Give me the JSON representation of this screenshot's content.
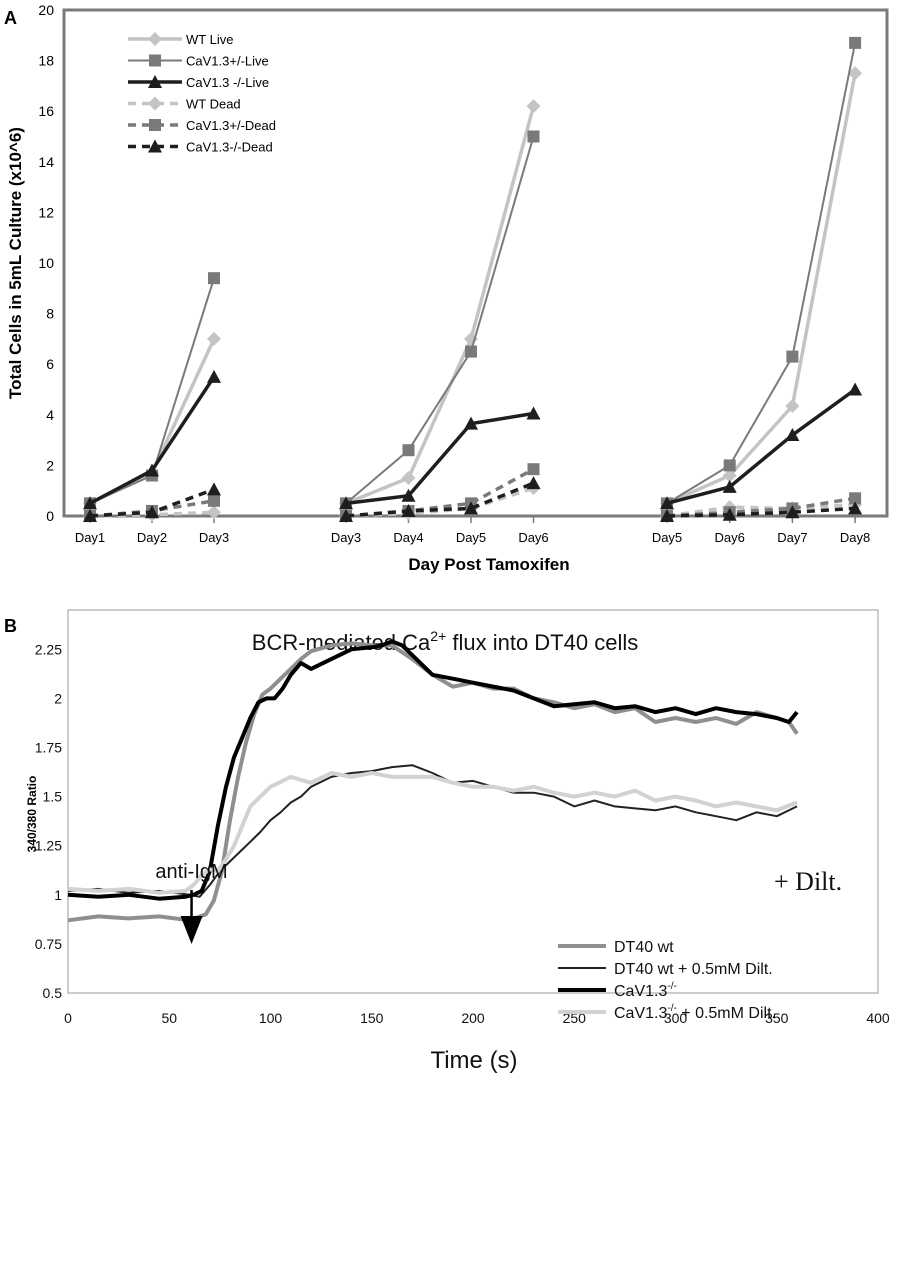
{
  "chart_data": [
    {
      "panel_label": "A",
      "type": "line",
      "ylabel": "Total Cells in 5mL Culture (x10^6)",
      "xlabel": "Day Post Tamoxifen",
      "ylim": [
        0,
        20
      ],
      "yticks": [
        "0",
        "2",
        "4",
        "6",
        "8",
        "10",
        "12",
        "14",
        "16",
        "18",
        "20"
      ],
      "grid": false,
      "legend_position": "top-left",
      "groups": [
        {
          "categories": [
            "Day1",
            "Day2",
            "Day3"
          ],
          "series": [
            {
              "name": "WT Live",
              "values": [
                0.5,
                1.7,
                7.0
              ]
            },
            {
              "name": "CaV1.3+/-Live",
              "values": [
                0.5,
                1.6,
                9.4
              ]
            },
            {
              "name": "CaV1.3 -/-Live",
              "values": [
                0.5,
                1.8,
                5.5
              ]
            },
            {
              "name": "WT Dead",
              "values": [
                0.0,
                0.05,
                0.15
              ]
            },
            {
              "name": "CaV1.3+/-Dead",
              "values": [
                0.0,
                0.2,
                0.6
              ]
            },
            {
              "name": "CaV1.3-/-Dead",
              "values": [
                0.0,
                0.15,
                1.05
              ]
            }
          ]
        },
        {
          "categories": [
            "Day3",
            "Day4",
            "Day5",
            "Day6"
          ],
          "series": [
            {
              "name": "WT Live",
              "values": [
                0.5,
                1.5,
                7.0,
                16.2
              ]
            },
            {
              "name": "CaV1.3+/-Live",
              "values": [
                0.5,
                2.6,
                6.5,
                15.0
              ]
            },
            {
              "name": "CaV1.3 -/-Live",
              "values": [
                0.5,
                0.8,
                3.65,
                4.05
              ]
            },
            {
              "name": "WT Dead",
              "values": [
                0.0,
                0.1,
                0.3,
                1.1
              ]
            },
            {
              "name": "CaV1.3+/-Dead",
              "values": [
                0.0,
                0.2,
                0.5,
                1.85
              ]
            },
            {
              "name": "CaV1.3-/-Dead",
              "values": [
                0.0,
                0.2,
                0.3,
                1.3
              ]
            }
          ]
        },
        {
          "categories": [
            "Day5",
            "Day6",
            "Day7",
            "Day8"
          ],
          "series": [
            {
              "name": "WT Live",
              "values": [
                0.5,
                1.6,
                4.35,
                17.5
              ]
            },
            {
              "name": "CaV1.3+/-Live",
              "values": [
                0.5,
                2.0,
                6.3,
                18.7
              ]
            },
            {
              "name": "CaV1.3 -/-Live",
              "values": [
                0.5,
                1.15,
                3.2,
                5.0
              ]
            },
            {
              "name": "WT Dead",
              "values": [
                0.0,
                0.35,
                0.3,
                0.45
              ]
            },
            {
              "name": "CaV1.3+/-Dead",
              "values": [
                0.0,
                0.15,
                0.3,
                0.7
              ]
            },
            {
              "name": "CaV1.3-/-Dead",
              "values": [
                0.0,
                0.05,
                0.15,
                0.3
              ]
            }
          ]
        }
      ],
      "series_styles": [
        {
          "name": "WT Live",
          "color": "#c4c4c4",
          "dash": false,
          "marker": "diamond"
        },
        {
          "name": "CaV1.3+/-Live",
          "color": "#7a7a7a",
          "dash": false,
          "marker": "square"
        },
        {
          "name": "CaV1.3 -/-Live",
          "color": "#1e1e1e",
          "dash": false,
          "marker": "triangle"
        },
        {
          "name": "WT Dead",
          "color": "#c4c4c4",
          "dash": true,
          "marker": "diamond"
        },
        {
          "name": "CaV1.3+/-Dead",
          "color": "#7a7a7a",
          "dash": true,
          "marker": "square"
        },
        {
          "name": "CaV1.3-/-Dead",
          "color": "#1e1e1e",
          "dash": true,
          "marker": "triangle"
        }
      ]
    },
    {
      "panel_label": "B",
      "type": "line",
      "title_parts": [
        "BCR-mediated Ca",
        "2+",
        " flux into DT40 cells"
      ],
      "xlabel": "Time (s)",
      "ylabel": "340/380 Ratio",
      "xlim": [
        0,
        400
      ],
      "ylim": [
        0.5,
        2.45
      ],
      "xticks": [
        "0",
        "50",
        "100",
        "150",
        "200",
        "250",
        "300",
        "350",
        "400"
      ],
      "yticks": [
        "0.5",
        "0.75",
        "1",
        "1.25",
        "1.5",
        "1.75",
        "2",
        "2.25"
      ],
      "grid": false,
      "legend_position": "bottom-right",
      "annotations": {
        "stimulus": "anti-IgM",
        "stimulus_time": 62,
        "dilt_label": "+ Dilt."
      },
      "legend": [
        {
          "name_parts": [
            "DT40 wt",
            "",
            ""
          ],
          "color": "#8f8f8f",
          "width": 4
        },
        {
          "name_parts": [
            "DT40 wt + 0.5mM Dilt.",
            "",
            ""
          ],
          "color": "#222222",
          "width": 2
        },
        {
          "name_parts": [
            "CaV1.3",
            "-/-",
            ""
          ],
          "color": "#000000",
          "width": 4
        },
        {
          "name_parts": [
            "CaV1.3",
            "-/-",
            " + 0.5mM Dilt."
          ],
          "color": "#d2d2d2",
          "width": 4
        }
      ],
      "series": [
        {
          "name": "DT40 wt",
          "color": "#8f8f8f",
          "width": 4,
          "x": [
            0,
            15,
            30,
            45,
            60,
            68,
            72,
            76,
            80,
            84,
            88,
            92,
            96,
            100,
            105,
            110,
            115,
            120,
            130,
            140,
            150,
            160,
            170,
            180,
            190,
            200,
            210,
            220,
            230,
            240,
            250,
            260,
            270,
            280,
            290,
            300,
            310,
            320,
            330,
            340,
            350,
            356,
            360
          ],
          "y": [
            0.87,
            0.89,
            0.88,
            0.89,
            0.87,
            0.9,
            0.97,
            1.12,
            1.38,
            1.6,
            1.78,
            1.92,
            2.02,
            2.05,
            2.1,
            2.15,
            2.2,
            2.24,
            2.27,
            2.28,
            2.27,
            2.27,
            2.2,
            2.12,
            2.06,
            2.08,
            2.05,
            2.05,
            2.0,
            1.98,
            1.95,
            1.97,
            1.93,
            1.95,
            1.88,
            1.9,
            1.88,
            1.9,
            1.87,
            1.93,
            1.9,
            1.88,
            1.82
          ]
        },
        {
          "name": "DT40 wt + 0.5mM Dilt.",
          "color": "#222222",
          "width": 2,
          "x": [
            0,
            15,
            30,
            45,
            60,
            65,
            70,
            75,
            80,
            85,
            90,
            95,
            100,
            105,
            110,
            115,
            120,
            130,
            140,
            150,
            160,
            170,
            180,
            190,
            200,
            210,
            220,
            230,
            240,
            250,
            260,
            270,
            280,
            290,
            300,
            310,
            320,
            330,
            340,
            350,
            360
          ],
          "y": [
            1.02,
            1.03,
            1.01,
            1.02,
            1.0,
            0.99,
            1.05,
            1.12,
            1.17,
            1.22,
            1.27,
            1.32,
            1.38,
            1.42,
            1.47,
            1.5,
            1.55,
            1.6,
            1.62,
            1.63,
            1.65,
            1.66,
            1.62,
            1.57,
            1.58,
            1.55,
            1.52,
            1.52,
            1.5,
            1.45,
            1.48,
            1.45,
            1.44,
            1.43,
            1.45,
            1.42,
            1.4,
            1.38,
            1.42,
            1.4,
            1.45
          ]
        },
        {
          "name": "CaV1.3-/-",
          "color": "#000000",
          "width": 4,
          "x": [
            0,
            15,
            30,
            45,
            58,
            62,
            66,
            70,
            74,
            78,
            82,
            86,
            90,
            94,
            98,
            102,
            106,
            110,
            115,
            120,
            130,
            140,
            150,
            155,
            160,
            165,
            170,
            180,
            190,
            200,
            210,
            220,
            230,
            240,
            250,
            260,
            270,
            280,
            290,
            300,
            310,
            320,
            330,
            340,
            350,
            356,
            360
          ],
          "y": [
            1.0,
            0.99,
            1.0,
            0.98,
            0.99,
            1.0,
            1.02,
            1.12,
            1.35,
            1.55,
            1.7,
            1.8,
            1.9,
            1.98,
            2.0,
            2.0,
            2.05,
            2.12,
            2.18,
            2.15,
            2.2,
            2.25,
            2.26,
            2.27,
            2.29,
            2.27,
            2.22,
            2.12,
            2.1,
            2.08,
            2.06,
            2.04,
            2.0,
            1.96,
            1.97,
            1.98,
            1.95,
            1.96,
            1.93,
            1.95,
            1.92,
            1.95,
            1.93,
            1.92,
            1.9,
            1.88,
            1.93
          ]
        },
        {
          "name": "CaV1.3-/- + 0.5mM Dilt.",
          "color": "#d2d2d2",
          "width": 4,
          "x": [
            0,
            15,
            30,
            45,
            58,
            62,
            66,
            70,
            74,
            78,
            82,
            86,
            90,
            95,
            100,
            110,
            120,
            130,
            140,
            150,
            160,
            170,
            180,
            190,
            200,
            210,
            220,
            230,
            240,
            250,
            260,
            270,
            280,
            290,
            300,
            310,
            320,
            330,
            340,
            350,
            360
          ],
          "y": [
            1.03,
            1.02,
            1.03,
            1.01,
            1.02,
            1.05,
            1.1,
            1.13,
            1.12,
            1.18,
            1.25,
            1.35,
            1.45,
            1.5,
            1.55,
            1.6,
            1.57,
            1.62,
            1.6,
            1.62,
            1.6,
            1.6,
            1.6,
            1.57,
            1.55,
            1.55,
            1.53,
            1.55,
            1.52,
            1.5,
            1.52,
            1.5,
            1.53,
            1.48,
            1.5,
            1.48,
            1.45,
            1.47,
            1.45,
            1.43,
            1.47
          ]
        }
      ]
    }
  ]
}
